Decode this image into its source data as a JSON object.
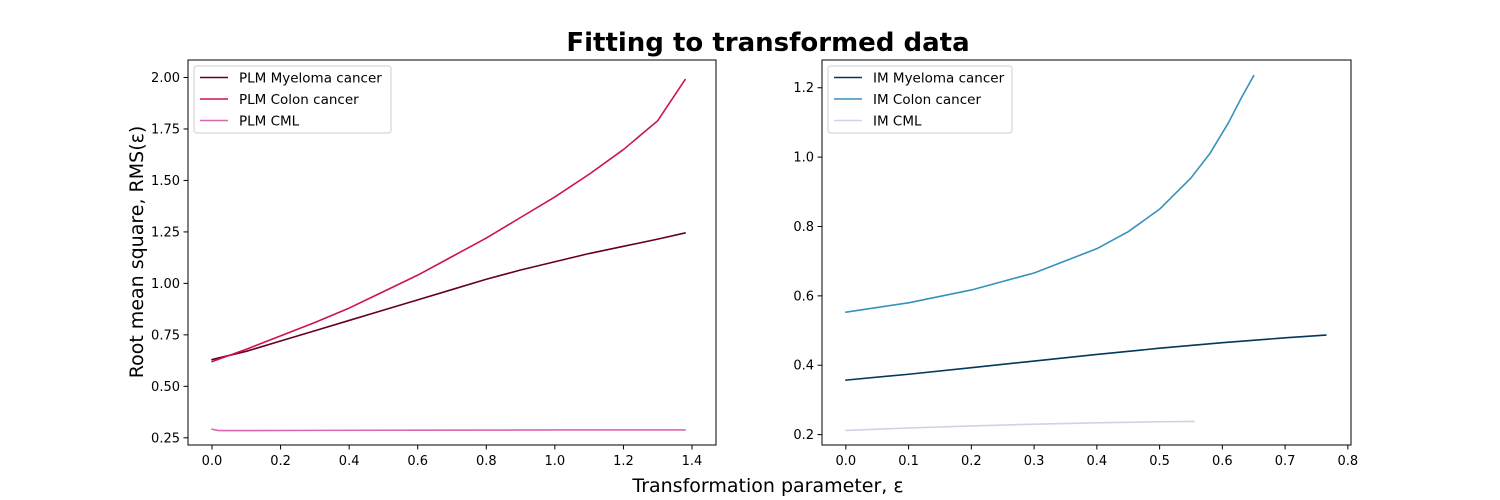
{
  "figure": {
    "suptitle": "Fitting to transformed data",
    "xlabel": "Transformation parameter, ε",
    "ylabel": "Root mean square, RMS(ε)"
  },
  "chart_data": [
    {
      "type": "line",
      "xlim": [
        -0.07,
        1.47
      ],
      "ylim": [
        0.215,
        2.085
      ],
      "xticks": [
        0.0,
        0.2,
        0.4,
        0.6,
        0.8,
        1.0,
        1.2,
        1.4
      ],
      "xtick_labels": [
        "0.0",
        "0.2",
        "0.4",
        "0.6",
        "0.8",
        "1.0",
        "1.2",
        "1.4"
      ],
      "yticks": [
        0.25,
        0.5,
        0.75,
        1.0,
        1.25,
        1.5,
        1.75,
        2.0
      ],
      "ytick_labels": [
        "0.25",
        "0.50",
        "0.75",
        "1.00",
        "1.25",
        "1.50",
        "1.75",
        "2.00"
      ],
      "legend_position": "top-left",
      "series": [
        {
          "name": "PLM Myeloma cancer",
          "color": "#67001f",
          "x": [
            0.0,
            0.1,
            0.2,
            0.3,
            0.4,
            0.5,
            0.6,
            0.7,
            0.8,
            0.9,
            1.0,
            1.1,
            1.2,
            1.3,
            1.38
          ],
          "y": [
            0.63,
            0.67,
            0.72,
            0.77,
            0.82,
            0.87,
            0.92,
            0.97,
            1.02,
            1.065,
            1.105,
            1.145,
            1.18,
            1.215,
            1.245
          ]
        },
        {
          "name": "PLM Colon cancer",
          "color": "#ce1256",
          "x": [
            0.0,
            0.1,
            0.2,
            0.3,
            0.4,
            0.5,
            0.6,
            0.7,
            0.8,
            0.9,
            1.0,
            1.1,
            1.2,
            1.3,
            1.38
          ],
          "y": [
            0.62,
            0.68,
            0.745,
            0.81,
            0.88,
            0.96,
            1.04,
            1.13,
            1.22,
            1.32,
            1.42,
            1.53,
            1.65,
            1.79,
            1.99
          ]
        },
        {
          "name": "PLM CML",
          "color": "#df65b0",
          "x": [
            0.0,
            0.01,
            0.02,
            0.1,
            0.3,
            0.6,
            1.0,
            1.38
          ],
          "y": [
            0.292,
            0.288,
            0.285,
            0.285,
            0.286,
            0.287,
            0.288,
            0.288
          ]
        }
      ]
    },
    {
      "type": "line",
      "xlim": [
        -0.038,
        0.805
      ],
      "ylim": [
        0.17,
        1.28
      ],
      "xticks": [
        0.0,
        0.1,
        0.2,
        0.3,
        0.4,
        0.5,
        0.6,
        0.7,
        0.8
      ],
      "xtick_labels": [
        "0.0",
        "0.1",
        "0.2",
        "0.3",
        "0.4",
        "0.5",
        "0.6",
        "0.7",
        "0.8"
      ],
      "yticks": [
        0.2,
        0.4,
        0.6,
        0.8,
        1.0,
        1.2
      ],
      "ytick_labels": [
        "0.2",
        "0.4",
        "0.6",
        "0.8",
        "1.0",
        "1.2"
      ],
      "legend_position": "top-left",
      "series": [
        {
          "name": "IM Myeloma cancer",
          "color": "#023858",
          "x": [
            0.0,
            0.1,
            0.2,
            0.3,
            0.4,
            0.5,
            0.6,
            0.7,
            0.765
          ],
          "y": [
            0.357,
            0.374,
            0.393,
            0.412,
            0.431,
            0.449,
            0.465,
            0.479,
            0.487
          ]
        },
        {
          "name": "IM Colon cancer",
          "color": "#3690c0",
          "x": [
            0.0,
            0.1,
            0.2,
            0.3,
            0.4,
            0.45,
            0.5,
            0.55,
            0.58,
            0.61,
            0.63,
            0.65
          ],
          "y": [
            0.553,
            0.58,
            0.617,
            0.666,
            0.736,
            0.785,
            0.85,
            0.94,
            1.01,
            1.1,
            1.17,
            1.235
          ]
        },
        {
          "name": "IM CML",
          "color": "#d0d1e6",
          "x": [
            0.0,
            0.1,
            0.2,
            0.3,
            0.4,
            0.5,
            0.555
          ],
          "y": [
            0.212,
            0.219,
            0.225,
            0.23,
            0.234,
            0.237,
            0.238
          ]
        }
      ]
    }
  ]
}
